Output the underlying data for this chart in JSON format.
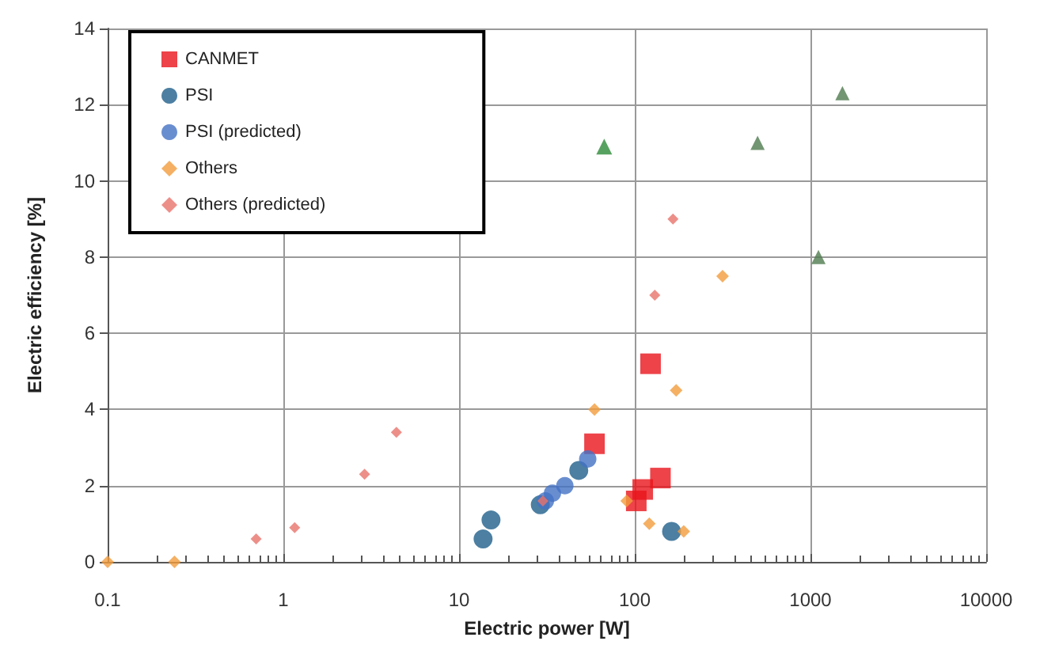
{
  "chart_data": {
    "type": "scatter",
    "xlabel": "Electric power [W]",
    "ylabel": "Electric efficiency [%]",
    "log": "x",
    "grid": true,
    "legend": "top left",
    "xlim": [
      0.1,
      10000
    ],
    "xticks": [
      0.1,
      1,
      10,
      100,
      1000,
      10000
    ],
    "ylim": [
      0,
      14
    ],
    "yticks": [
      0,
      2,
      4,
      6,
      8,
      10,
      12,
      14
    ],
    "series": [
      {
        "name": "CANMET",
        "color": "#e8141c",
        "marker": "square",
        "x": [
          59,
          123,
          102,
          111,
          140
        ],
        "values": [
          3.1,
          5.2,
          1.6,
          1.9,
          2.2
        ]
      },
      {
        "name": "PSI",
        "color": "#1f5f8b",
        "marker": "circle",
        "x": [
          13.7,
          15.2,
          29,
          48,
          162
        ],
        "values": [
          0.6,
          1.1,
          1.5,
          2.4,
          0.8
        ]
      },
      {
        "name": "PSI (predicted)",
        "color": "#4472c4",
        "marker": "circle",
        "x": [
          31,
          34,
          40,
          54
        ],
        "values": [
          1.6,
          1.8,
          2.0,
          2.7
        ]
      },
      {
        "color": "#2e8b3a",
        "marker": "triangle",
        "x": [
          67
        ],
        "values": [
          10.9
        ]
      },
      {
        "color": "#4f7a4f",
        "marker": "triangle",
        "x": [
          500,
          1520,
          1110
        ],
        "values": [
          11.0,
          12.3,
          8.0
        ]
      },
      {
        "name": "Others",
        "color": "#f39c3c",
        "marker": "diamond",
        "x": [
          0.1,
          0.24,
          59,
          172,
          316,
          90,
          121,
          190
        ],
        "values": [
          0,
          0,
          4.0,
          4.5,
          7.5,
          1.6,
          1.0,
          0.8
        ]
      },
      {
        "name": "Others (predicted)",
        "color": "#e8736b",
        "marker": "diamond",
        "x": [
          0.7,
          1.16,
          2.9,
          4.4,
          165,
          130,
          30
        ],
        "values": [
          0.6,
          0.9,
          2.3,
          3.4,
          9.0,
          7.0,
          1.6
        ]
      }
    ]
  }
}
